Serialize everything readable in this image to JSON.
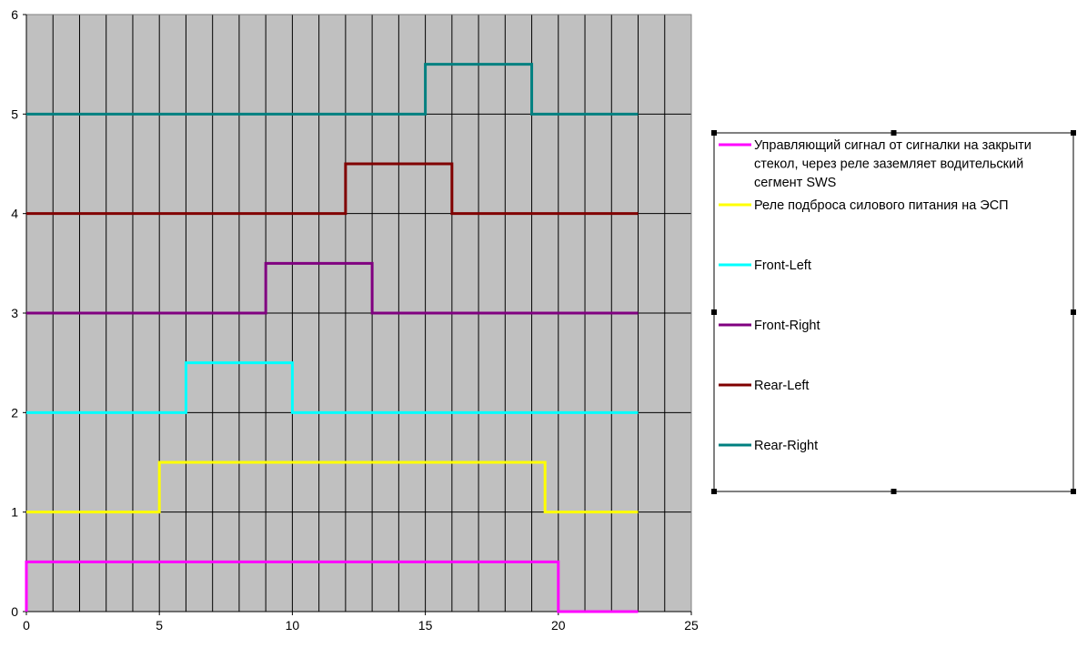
{
  "chart_data": {
    "type": "line",
    "step": true,
    "xlim": [
      0,
      25
    ],
    "ylim": [
      0,
      6
    ],
    "x_ticks": [
      "0",
      "5",
      "10",
      "15",
      "20",
      "25"
    ],
    "y_ticks": [
      "0",
      "1",
      "2",
      "3",
      "4",
      "5",
      "6"
    ],
    "x_grid_step": 1,
    "y_grid_step": 1,
    "grid": true,
    "plot_background": "#c0c0c0",
    "legend_placement": "right",
    "series": [
      {
        "name_lines": [
          "Управляющий сигнал от сигналки на закрыти",
          "стекол, через реле заземляет водительский",
          "сегмент SWS"
        ],
        "color": "#ff00ff",
        "points": [
          [
            0,
            0
          ],
          [
            0,
            0.5
          ],
          [
            20,
            0.5
          ],
          [
            20,
            0
          ],
          [
            23,
            0
          ]
        ]
      },
      {
        "name_lines": [
          "Реле подброса силового питания на ЭСП"
        ],
        "color": "#ffff00",
        "points": [
          [
            0,
            1
          ],
          [
            5,
            1
          ],
          [
            5,
            1.5
          ],
          [
            19.5,
            1.5
          ],
          [
            19.5,
            1
          ],
          [
            23,
            1
          ]
        ]
      },
      {
        "name_lines": [
          "Front-Left"
        ],
        "color": "#00ffff",
        "points": [
          [
            0,
            2
          ],
          [
            6,
            2
          ],
          [
            6,
            2.5
          ],
          [
            10,
            2.5
          ],
          [
            10,
            2
          ],
          [
            23,
            2
          ]
        ]
      },
      {
        "name_lines": [
          "Front-Right"
        ],
        "color": "#800080",
        "points": [
          [
            0,
            3
          ],
          [
            9,
            3
          ],
          [
            9,
            3.5
          ],
          [
            13,
            3.5
          ],
          [
            13,
            3
          ],
          [
            23,
            3
          ]
        ]
      },
      {
        "name_lines": [
          "Rear-Left"
        ],
        "color": "#800000",
        "points": [
          [
            0,
            4
          ],
          [
            12,
            4
          ],
          [
            12,
            4.5
          ],
          [
            16,
            4.5
          ],
          [
            16,
            4
          ],
          [
            23,
            4
          ]
        ]
      },
      {
        "name_lines": [
          "Rear-Right"
        ],
        "color": "#008080",
        "points": [
          [
            0,
            5
          ],
          [
            15,
            5
          ],
          [
            15,
            5.5
          ],
          [
            19,
            5.5
          ],
          [
            19,
            5
          ],
          [
            23,
            5
          ]
        ]
      }
    ]
  }
}
